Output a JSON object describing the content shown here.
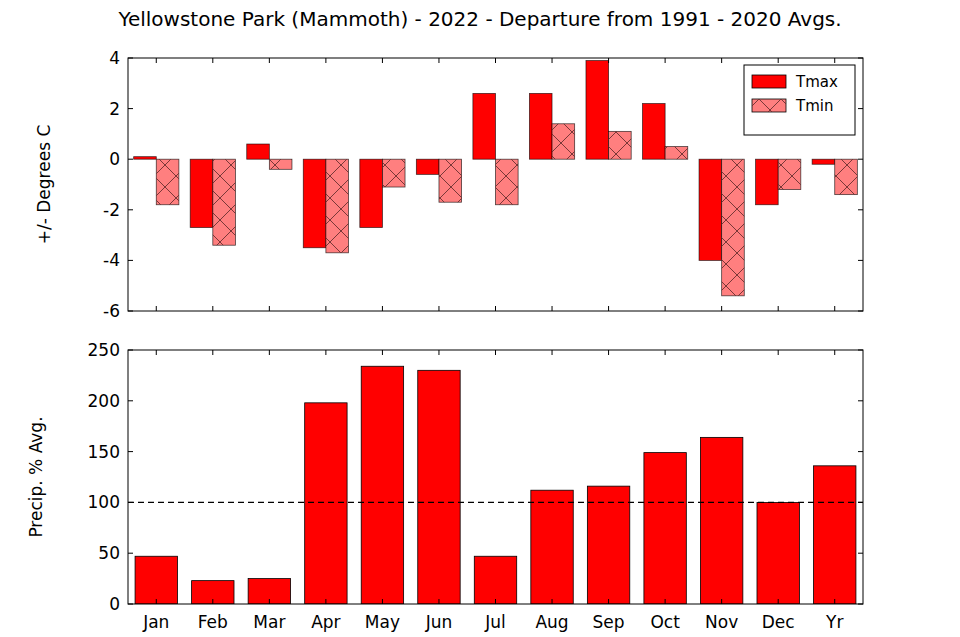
{
  "chart_data": [
    {
      "type": "bar",
      "title": "Yellowstone Park (Mammoth) - 2022 - Departure from 1991 - 2020 Avgs.",
      "y_label": "+/- Degrees C",
      "categories": [
        "Jan",
        "Feb",
        "Mar",
        "Apr",
        "May",
        "Jun",
        "Jul",
        "Aug",
        "Sep",
        "Oct",
        "Nov",
        "Dec",
        "Yr"
      ],
      "series": [
        {
          "name": "Tmax",
          "color": "#ff0000",
          "values": [
            0.1,
            -2.7,
            0.6,
            -3.5,
            -2.7,
            -0.6,
            2.6,
            2.6,
            3.9,
            2.2,
            -4.0,
            -1.8,
            -0.2
          ]
        },
        {
          "name": "Tmin",
          "color": "#ff7f7f",
          "values": [
            -1.8,
            -3.4,
            -0.4,
            -3.7,
            -1.1,
            -1.7,
            -1.8,
            1.4,
            1.1,
            0.5,
            -5.4,
            -1.2,
            -1.4
          ]
        }
      ],
      "ylim": [
        -6,
        4
      ],
      "yticks": [
        -6,
        -4,
        -2,
        0,
        2,
        4
      ],
      "grid": false,
      "legend": "upper-right",
      "tick_labels": "y"
    },
    {
      "type": "bar",
      "y_label": "Precip. % Avg.",
      "categories": [
        "Jan",
        "Feb",
        "Mar",
        "Apr",
        "May",
        "Jun",
        "Jul",
        "Aug",
        "Sep",
        "Oct",
        "Nov",
        "Dec",
        "Yr"
      ],
      "values": [
        47,
        23,
        25,
        198,
        234,
        230,
        47,
        112,
        116,
        149,
        164,
        100,
        136
      ],
      "color": "#ff0000",
      "reference_line": 100,
      "ylim": [
        0,
        250
      ],
      "yticks": [
        0,
        50,
        100,
        150,
        200,
        250
      ],
      "grid": false
    }
  ]
}
